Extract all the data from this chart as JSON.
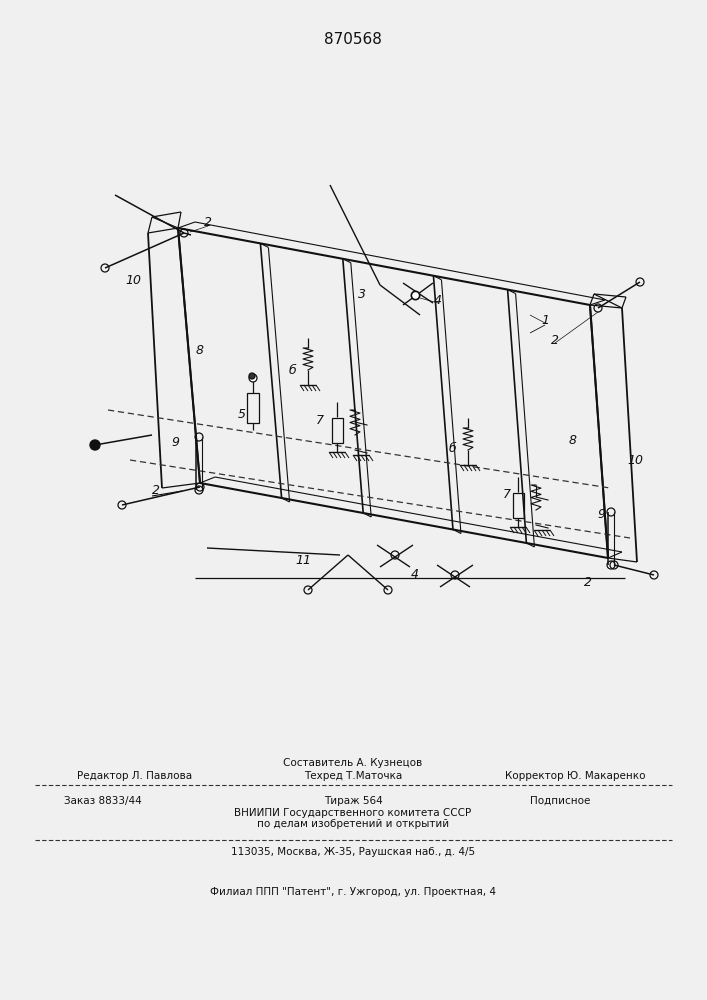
{
  "patent_number": "870568",
  "bg_color": "#f0f0f0",
  "line_color": "#1a1a1a",
  "footer_line1_top": "Составитель А. Кузнецов",
  "footer_line1_left": "Редактор Л. Павлова",
  "footer_line1_mid": "Техред Т.Маточка",
  "footer_line1_right": "Корректор Ю. Макаренко",
  "footer_line2_left": "Заказ 8833/44",
  "footer_line2_center": "Тираж 564",
  "footer_line2_right": "Подписное",
  "footer_line3": "ВНИИПИ Государственного комитета СССР",
  "footer_line4": "по делам изобретений и открытий",
  "footer_line5": "113035, Москва, Ж-35, Раушская наб., д. 4/5",
  "footer_line6": "Филиал ППП \"Патент\", г. Ужгород, ул. Проектная, 4"
}
